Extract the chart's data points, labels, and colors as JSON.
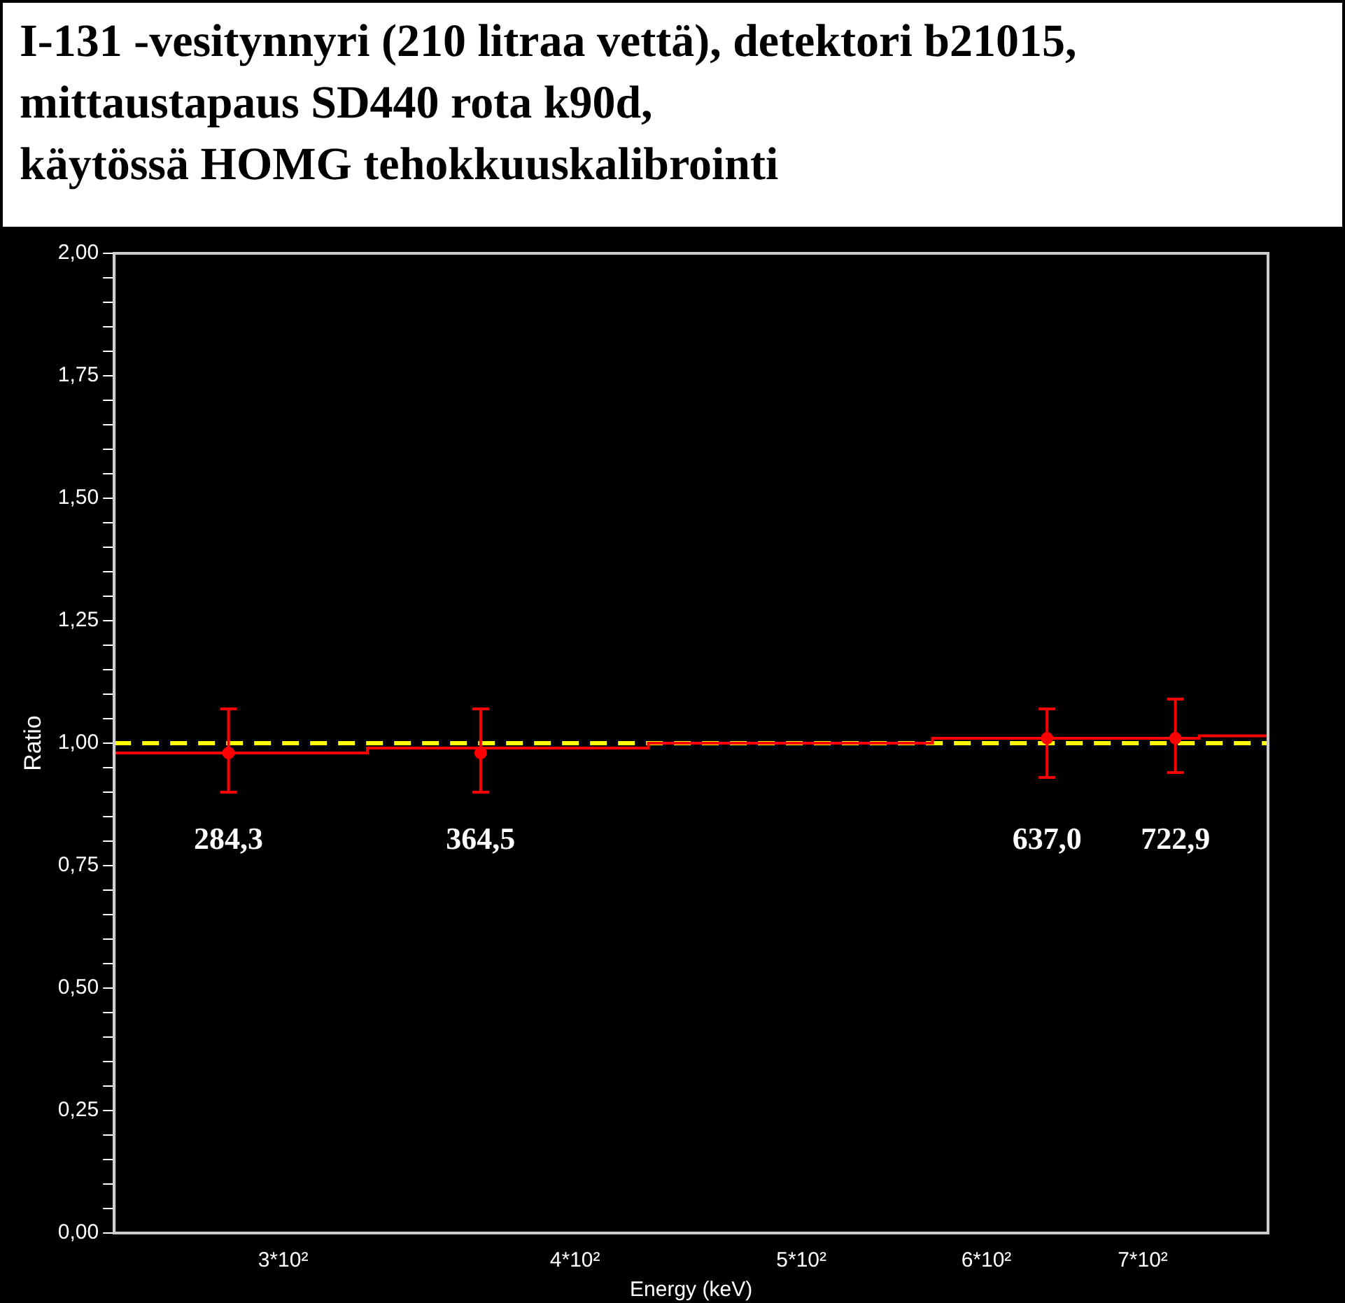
{
  "chart_data": {
    "type": "scatter",
    "title": "I-131 -vesitynnyri (210 litraa vettä), detektori b21015,\nmittaustapaus SD440 rota k90d,\nkäytössä HOMG tehokkuuskalibrointi",
    "xlabel": "Energy (keV)",
    "ylabel": "Ratio",
    "log": "x",
    "legend": false,
    "xlim": [
      254,
      792
    ],
    "xticks": [
      {
        "value": 300,
        "label": "3*10²"
      },
      {
        "value": 400,
        "label": "4*10²"
      },
      {
        "value": 500,
        "label": "5*10²"
      },
      {
        "value": 600,
        "label": "6*10²"
      },
      {
        "value": 700,
        "label": "7*10²"
      }
    ],
    "ylim": [
      0,
      2
    ],
    "yticks": [
      "0,00",
      {
        "value": 0.05,
        "label": null
      },
      {
        "value": 0.1,
        "label": null
      },
      {
        "value": 0.15,
        "label": null
      },
      {
        "value": 0.2,
        "label": null
      },
      {
        "value": 0.25,
        "label": "0,25"
      },
      {
        "value": 0.3,
        "label": null
      },
      {
        "value": 0.35,
        "label": null
      },
      {
        "value": 0.4,
        "label": null
      },
      {
        "value": 0.45,
        "label": null
      },
      {
        "value": 0.5,
        "label": "0,50"
      },
      {
        "value": 0.55,
        "label": null
      },
      {
        "value": 0.6,
        "label": null
      },
      {
        "value": 0.65,
        "label": null
      },
      {
        "value": 0.7,
        "label": null
      },
      {
        "value": 0.75,
        "label": "0,75"
      },
      {
        "value": 0.8,
        "label": null
      },
      {
        "value": 0.85,
        "label": null
      },
      {
        "value": 0.9,
        "label": null
      },
      {
        "value": 0.95,
        "label": null
      },
      {
        "value": 1,
        "label": "1,00"
      },
      {
        "value": 1.05,
        "label": null
      },
      {
        "value": 1.1,
        "label": null
      },
      {
        "value": 1.15,
        "label": null
      },
      {
        "value": 1.2,
        "label": null
      },
      {
        "value": 1.25,
        "label": "1,25"
      },
      {
        "value": 1.3,
        "label": null
      },
      {
        "value": 1.35,
        "label": null
      },
      {
        "value": 1.4,
        "label": null
      },
      {
        "value": 1.45,
        "label": null
      },
      {
        "value": 1.5,
        "label": "1,50"
      },
      {
        "value": 1.55,
        "label": null
      },
      {
        "value": 1.6,
        "label": null
      },
      {
        "value": 1.65,
        "label": null
      },
      {
        "value": 1.7,
        "label": null
      },
      {
        "value": 1.75,
        "label": "1,75"
      },
      {
        "value": 1.8,
        "label": null
      },
      {
        "value": 1.85,
        "label": null
      },
      {
        "value": 1.9,
        "label": null
      },
      {
        "value": 1.95,
        "label": null
      },
      {
        "value": 2,
        "label": "2,00"
      }
    ],
    "series": [
      {
        "color": "#ff0000",
        "marker": "circle",
        "x": [
          284.3,
          364.5,
          637.0,
          722.9
        ],
        "values": [
          0.98,
          0.98,
          1.01,
          1.01
        ],
        "errors": [
          [
            0.9,
            1.07
          ],
          [
            0.9,
            1.07
          ],
          [
            0.93,
            1.07
          ],
          [
            0.94,
            1.09
          ]
        ]
      },
      {
        "type": "step",
        "marker": "none",
        "color": "#ff0000",
        "x": [
          254,
          326,
          430,
          569,
          740,
          792
        ],
        "values": [
          0.98,
          0.99,
          1.0,
          1.01,
          1.015,
          1.015
        ]
      }
    ],
    "ref_lines": [
      {
        "axis": "y",
        "value": 1,
        "color": "#ffff00",
        "line_style": "dashed"
      }
    ],
    "annotations": [
      "284,3",
      "364,5",
      "637,0",
      "722,9"
    ]
  }
}
